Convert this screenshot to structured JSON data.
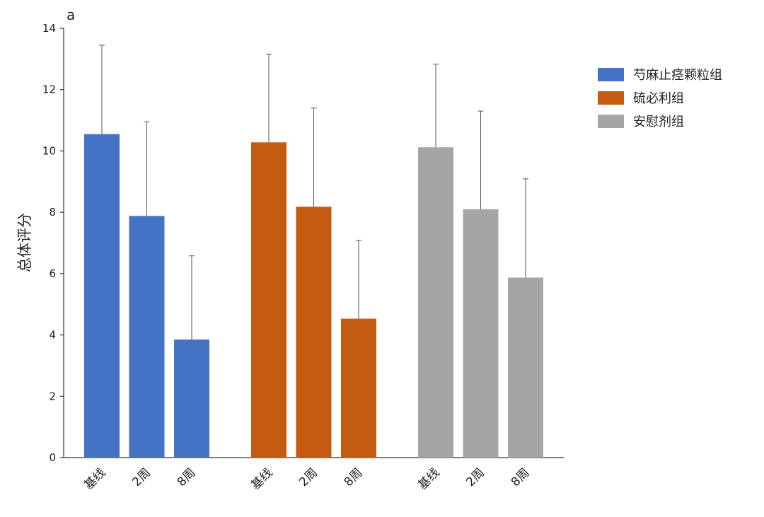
{
  "panel_label": "a",
  "chart_data": {
    "type": "bar",
    "ylabel": "总体评分",
    "ylim": [
      0,
      14
    ],
    "yticks": [
      0,
      2,
      4,
      6,
      8,
      10,
      12,
      14
    ],
    "grid": false,
    "legend_position": "right",
    "groups": [
      {
        "name": "芍麻止痉颗粒组",
        "color": "#4472c4",
        "categories": [
          "基线",
          "2周",
          "8周"
        ],
        "values": [
          10.55,
          7.88,
          3.85
        ],
        "error": [
          2.9,
          3.07,
          2.73
        ]
      },
      {
        "name": "硫必利组",
        "color": "#c55a11",
        "categories": [
          "基线",
          "2周",
          "8周"
        ],
        "values": [
          10.28,
          8.18,
          4.53
        ],
        "error": [
          2.87,
          3.22,
          2.55
        ]
      },
      {
        "name": "安慰剂组",
        "color": "#a5a5a5",
        "categories": [
          "基线",
          "2周",
          "8周"
        ],
        "values": [
          10.12,
          8.1,
          5.87
        ],
        "error": [
          2.71,
          3.2,
          3.22
        ]
      }
    ]
  }
}
